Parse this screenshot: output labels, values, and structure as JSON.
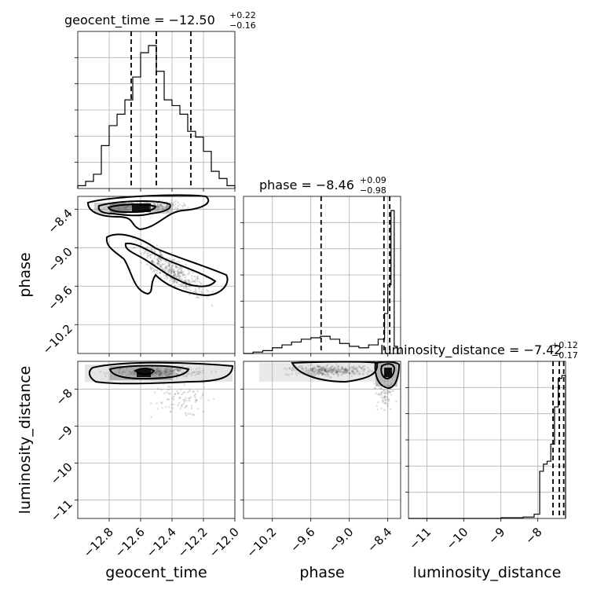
{
  "chart_data": {
    "type": "corner",
    "parameters": [
      "geocent_time",
      "phase",
      "luminosity_distance"
    ],
    "axis_labels": {
      "x": [
        "geocent_time",
        "phase",
        "luminosity_distance"
      ],
      "y": [
        "phase",
        "luminosity_distance"
      ]
    },
    "ranges": {
      "geocent_time": [
        -13.0,
        -12.0
      ],
      "phase": [
        -10.65,
        -8.2
      ],
      "luminosity_distance": [
        -11.5,
        -7.25
      ]
    },
    "ticks": {
      "geocent_time": [
        -12.8,
        -12.6,
        -12.4,
        -12.2,
        -12.0
      ],
      "phase": [
        -10.2,
        -9.6,
        -9.0,
        -8.4
      ],
      "luminosity_distance": [
        -11,
        -10,
        -9,
        -8
      ]
    },
    "tick_labels": {
      "geocent_time": [
        "−12.8",
        "−12.6",
        "−12.4",
        "−12.2",
        "−12.0"
      ],
      "phase": [
        "−10.2",
        "−9.6",
        "−9.0",
        "−8.4"
      ],
      "luminosity_distance": [
        "−11",
        "−10",
        "−9",
        "−8"
      ]
    },
    "titles": {
      "geocent_time": {
        "prefix": "geocent_time = −12.50",
        "plus": "+0.22",
        "minus": "−0.16"
      },
      "phase": {
        "prefix": "phase = −8.46",
        "plus": "+0.09",
        "minus": "−0.98"
      },
      "luminosity_distance": {
        "prefix": "luminosity_distance = −7.42",
        "plus": "+0.12",
        "minus": "−0.17"
      }
    },
    "quantiles": {
      "geocent_time": [
        -12.66,
        -12.5,
        -12.28
      ],
      "phase": [
        -9.44,
        -8.46,
        -8.37
      ],
      "luminosity_distance": [
        -7.59,
        -7.42,
        -7.3
      ]
    },
    "histograms": {
      "geocent_time": {
        "edges": [
          -13.0,
          -12.95,
          -12.9,
          -12.85,
          -12.8,
          -12.75,
          -12.7,
          -12.65,
          -12.6,
          -12.55,
          -12.5,
          -12.45,
          -12.4,
          -12.35,
          -12.3,
          -12.25,
          -12.2,
          -12.15,
          -12.1,
          -12.05,
          -12.0
        ],
        "counts": [
          0.02,
          0.05,
          0.1,
          0.3,
          0.44,
          0.52,
          0.62,
          0.78,
          0.95,
          1.0,
          0.82,
          0.62,
          0.58,
          0.52,
          0.4,
          0.36,
          0.26,
          0.12,
          0.07,
          0.02
        ]
      },
      "phase": {
        "edges": [
          -10.65,
          -10.5,
          -10.35,
          -10.2,
          -10.05,
          -9.9,
          -9.75,
          -9.6,
          -9.45,
          -9.3,
          -9.15,
          -9.0,
          -8.85,
          -8.7,
          -8.55,
          -8.45,
          -8.4,
          -8.35,
          -8.3,
          -8.25,
          -8.2
        ],
        "counts": [
          0.0,
          0.01,
          0.02,
          0.04,
          0.06,
          0.08,
          0.1,
          0.11,
          0.12,
          0.1,
          0.07,
          0.05,
          0.04,
          0.06,
          0.1,
          0.28,
          0.48,
          1.0,
          0.05,
          0.0
        ]
      },
      "luminosity_distance": {
        "edges": [
          -11.5,
          -10.0,
          -9.0,
          -8.4,
          -8.1,
          -7.95,
          -7.85,
          -7.75,
          -7.65,
          -7.55,
          -7.45,
          -7.35,
          -7.25
        ],
        "counts": [
          0.0,
          0.0,
          0.005,
          0.01,
          0.03,
          0.33,
          0.38,
          0.4,
          0.52,
          0.78,
          0.98,
          1.0
        ]
      }
    }
  }
}
